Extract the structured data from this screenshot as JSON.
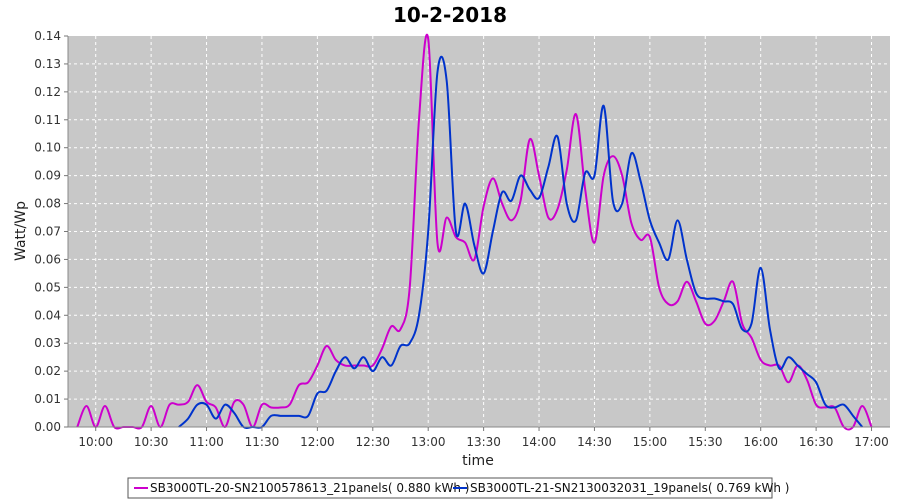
{
  "chart_data": {
    "type": "line",
    "title": "10-2-2018",
    "xlabel": "time",
    "ylabel": "Watt/Wp",
    "xlim": [
      "09:45",
      "17:10"
    ],
    "ylim": [
      0,
      0.14
    ],
    "x_ticks": [
      "10:00",
      "10:30",
      "11:00",
      "11:30",
      "12:00",
      "12:30",
      "13:00",
      "13:30",
      "14:00",
      "14:30",
      "15:00",
      "15:30",
      "16:00",
      "16:30",
      "17:00"
    ],
    "y_ticks": [
      "0.00",
      "0.01",
      "0.02",
      "0.03",
      "0.04",
      "0.05",
      "0.06",
      "0.07",
      "0.08",
      "0.09",
      "0.10",
      "0.11",
      "0.12",
      "0.13",
      "0.14"
    ],
    "grid": true,
    "legend_position": "bottom",
    "plot_background": "#c8c8c8",
    "series": [
      {
        "name": "SB3000TL-20-SN2100578613_21panels( 0.880 kWh )",
        "color": "#cc00cc",
        "points": [
          [
            "09:50",
            0.0
          ],
          [
            "09:55",
            0.0075
          ],
          [
            "10:00",
            0.0
          ],
          [
            "10:05",
            0.0075
          ],
          [
            "10:10",
            0.0
          ],
          [
            "10:15",
            0.0
          ],
          [
            "10:20",
            0.0
          ],
          [
            "10:25",
            0.0
          ],
          [
            "10:30",
            0.0075
          ],
          [
            "10:35",
            0.0
          ],
          [
            "10:40",
            0.008
          ],
          [
            "10:45",
            0.008
          ],
          [
            "10:50",
            0.009
          ],
          [
            "10:55",
            0.015
          ],
          [
            "11:00",
            0.009
          ],
          [
            "11:05",
            0.007
          ],
          [
            "11:10",
            0.0
          ],
          [
            "11:15",
            0.009
          ],
          [
            "11:20",
            0.008
          ],
          [
            "11:25",
            0.0
          ],
          [
            "11:30",
            0.008
          ],
          [
            "11:35",
            0.007
          ],
          [
            "11:40",
            0.007
          ],
          [
            "11:45",
            0.008
          ],
          [
            "11:50",
            0.015
          ],
          [
            "11:55",
            0.016
          ],
          [
            "12:00",
            0.022
          ],
          [
            "12:05",
            0.029
          ],
          [
            "12:10",
            0.024
          ],
          [
            "12:15",
            0.022
          ],
          [
            "12:20",
            0.022
          ],
          [
            "12:25",
            0.022
          ],
          [
            "12:30",
            0.022
          ],
          [
            "12:35",
            0.028
          ],
          [
            "12:40",
            0.036
          ],
          [
            "12:45",
            0.035
          ],
          [
            "12:50",
            0.05
          ],
          [
            "12:55",
            0.11
          ],
          [
            "13:00",
            0.139
          ],
          [
            "13:05",
            0.066
          ],
          [
            "13:10",
            0.075
          ],
          [
            "13:15",
            0.068
          ],
          [
            "13:20",
            0.066
          ],
          [
            "13:25",
            0.06
          ],
          [
            "13:30",
            0.079
          ],
          [
            "13:35",
            0.089
          ],
          [
            "13:40",
            0.08
          ],
          [
            "13:45",
            0.074
          ],
          [
            "13:50",
            0.081
          ],
          [
            "13:55",
            0.103
          ],
          [
            "14:00",
            0.09
          ],
          [
            "14:05",
            0.075
          ],
          [
            "14:10",
            0.078
          ],
          [
            "14:15",
            0.092
          ],
          [
            "14:20",
            0.112
          ],
          [
            "14:25",
            0.085
          ],
          [
            "14:30",
            0.066
          ],
          [
            "14:35",
            0.09
          ],
          [
            "14:40",
            0.097
          ],
          [
            "14:45",
            0.09
          ],
          [
            "14:50",
            0.073
          ],
          [
            "14:55",
            0.067
          ],
          [
            "15:00",
            0.068
          ],
          [
            "15:05",
            0.05
          ],
          [
            "15:10",
            0.044
          ],
          [
            "15:15",
            0.045
          ],
          [
            "15:20",
            0.052
          ],
          [
            "15:25",
            0.045
          ],
          [
            "15:30",
            0.037
          ],
          [
            "15:35",
            0.038
          ],
          [
            "15:40",
            0.045
          ],
          [
            "15:45",
            0.052
          ],
          [
            "15:50",
            0.037
          ],
          [
            "15:55",
            0.032
          ],
          [
            "16:00",
            0.024
          ],
          [
            "16:05",
            0.022
          ],
          [
            "16:10",
            0.022
          ],
          [
            "16:15",
            0.016
          ],
          [
            "16:20",
            0.022
          ],
          [
            "16:25",
            0.017
          ],
          [
            "16:30",
            0.008
          ],
          [
            "16:35",
            0.007
          ],
          [
            "16:40",
            0.007
          ],
          [
            "16:45",
            0.0
          ],
          [
            "16:50",
            0.0
          ],
          [
            "16:55",
            0.0075
          ],
          [
            "17:00",
            0.0
          ]
        ]
      },
      {
        "name": "SB3000TL-21-SN2130032031_19panels( 0.769 kWh )",
        "color": "#0033cc",
        "points": [
          [
            "10:45",
            0.0
          ],
          [
            "10:50",
            0.003
          ],
          [
            "10:55",
            0.008
          ],
          [
            "11:00",
            0.008
          ],
          [
            "11:05",
            0.003
          ],
          [
            "11:10",
            0.008
          ],
          [
            "11:15",
            0.005
          ],
          [
            "11:20",
            0.0
          ],
          [
            "11:25",
            0.0
          ],
          [
            "11:30",
            0.0
          ],
          [
            "11:35",
            0.004
          ],
          [
            "11:40",
            0.004
          ],
          [
            "11:45",
            0.004
          ],
          [
            "11:50",
            0.004
          ],
          [
            "11:55",
            0.004
          ],
          [
            "12:00",
            0.012
          ],
          [
            "12:05",
            0.013
          ],
          [
            "12:10",
            0.02
          ],
          [
            "12:15",
            0.025
          ],
          [
            "12:20",
            0.021
          ],
          [
            "12:25",
            0.025
          ],
          [
            "12:30",
            0.02
          ],
          [
            "12:35",
            0.025
          ],
          [
            "12:40",
            0.022
          ],
          [
            "12:45",
            0.029
          ],
          [
            "12:50",
            0.03
          ],
          [
            "12:55",
            0.04
          ],
          [
            "13:00",
            0.07
          ],
          [
            "13:05",
            0.127
          ],
          [
            "13:10",
            0.124
          ],
          [
            "13:15",
            0.07
          ],
          [
            "13:20",
            0.08
          ],
          [
            "13:25",
            0.065
          ],
          [
            "13:30",
            0.055
          ],
          [
            "13:35",
            0.07
          ],
          [
            "13:40",
            0.084
          ],
          [
            "13:45",
            0.081
          ],
          [
            "13:50",
            0.09
          ],
          [
            "13:55",
            0.085
          ],
          [
            "14:00",
            0.082
          ],
          [
            "14:05",
            0.093
          ],
          [
            "14:10",
            0.104
          ],
          [
            "14:15",
            0.08
          ],
          [
            "14:20",
            0.074
          ],
          [
            "14:25",
            0.091
          ],
          [
            "14:30",
            0.09
          ],
          [
            "14:35",
            0.115
          ],
          [
            "14:40",
            0.081
          ],
          [
            "14:45",
            0.08
          ],
          [
            "14:50",
            0.098
          ],
          [
            "14:55",
            0.088
          ],
          [
            "15:00",
            0.074
          ],
          [
            "15:05",
            0.066
          ],
          [
            "15:10",
            0.06
          ],
          [
            "15:15",
            0.074
          ],
          [
            "15:20",
            0.06
          ],
          [
            "15:25",
            0.048
          ],
          [
            "15:30",
            0.046
          ],
          [
            "15:35",
            0.046
          ],
          [
            "15:40",
            0.045
          ],
          [
            "15:45",
            0.044
          ],
          [
            "15:50",
            0.035
          ],
          [
            "15:55",
            0.037
          ],
          [
            "16:00",
            0.057
          ],
          [
            "16:05",
            0.035
          ],
          [
            "16:10",
            0.021
          ],
          [
            "16:15",
            0.025
          ],
          [
            "16:20",
            0.022
          ],
          [
            "16:25",
            0.019
          ],
          [
            "16:30",
            0.016
          ],
          [
            "16:35",
            0.008
          ],
          [
            "16:40",
            0.007
          ],
          [
            "16:45",
            0.008
          ],
          [
            "16:50",
            0.004
          ],
          [
            "16:55",
            0.0
          ]
        ]
      }
    ]
  }
}
